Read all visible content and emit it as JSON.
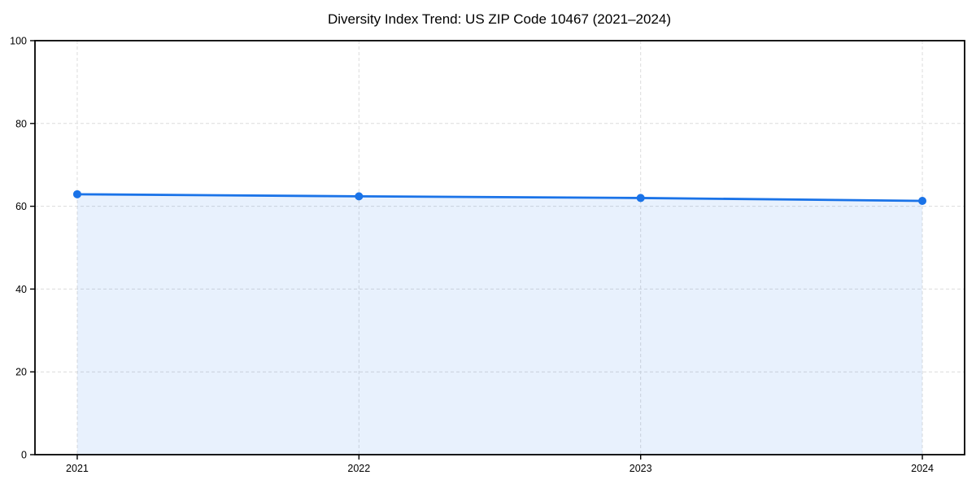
{
  "chart_data": {
    "type": "line",
    "title": "Diversity Index Trend: US ZIP Code 10467 (2021–2024)",
    "x": [
      2021,
      2022,
      2023,
      2024
    ],
    "x_labels": [
      "2021",
      "2022",
      "2023",
      "2024"
    ],
    "series": [
      {
        "name": "Diversity Index",
        "values": [
          62.9,
          62.4,
          62.0,
          61.3
        ]
      }
    ],
    "ylim": [
      0,
      100
    ],
    "yticks": [
      0,
      20,
      40,
      60,
      80,
      100
    ],
    "ytick_labels": [
      "0",
      "20",
      "40",
      "60",
      "80",
      "100"
    ],
    "x_margin_fraction": 0.05,
    "grid": "dashed both axes",
    "legend": "none",
    "area_fill": true,
    "colors": {
      "line": "#1a73e8",
      "marker": "#1a73e8",
      "area_fill": "#1a73e8",
      "area_fill_opacity": 0.1,
      "grid": "#dcdcdc",
      "axis": "#000000",
      "text": "#000000",
      "background": "#ffffff"
    }
  }
}
